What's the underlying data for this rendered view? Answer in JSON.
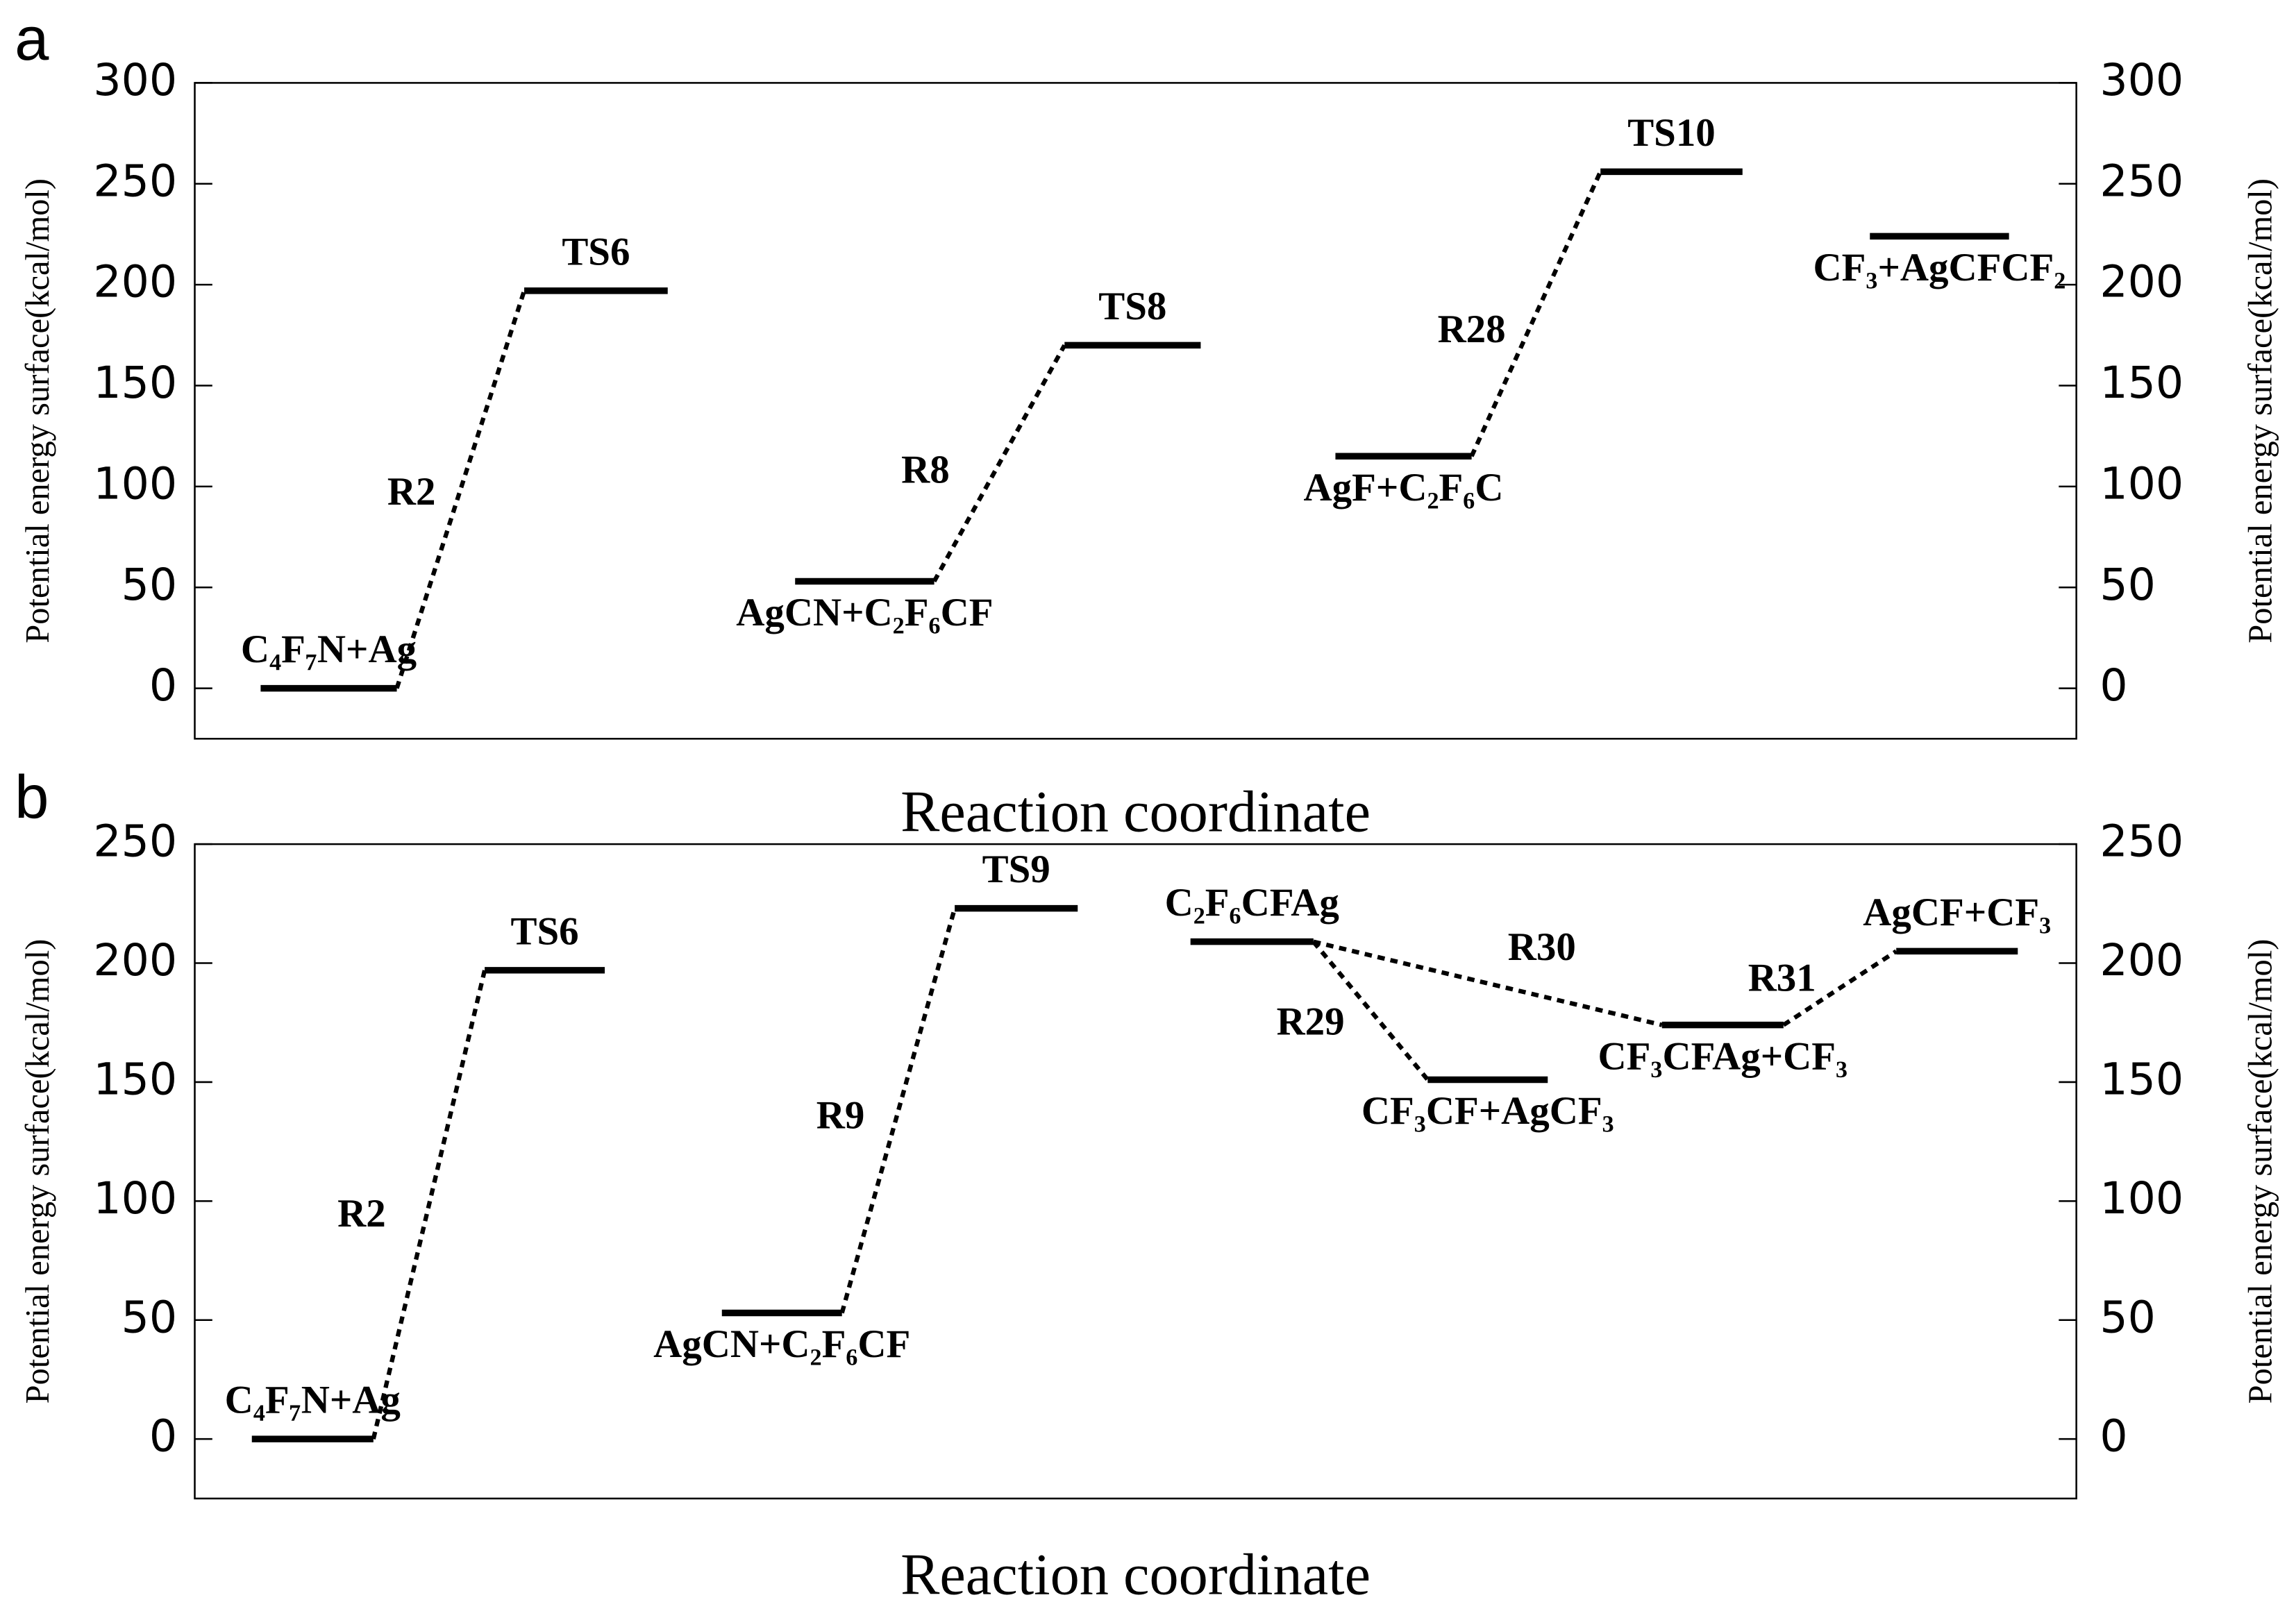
{
  "chart_data": [
    {
      "type": "energy",
      "panel": "a",
      "ylabel": "Potential energy surface(kcal/mol)",
      "y2label": "Potential energy surface(kcal/mol)",
      "xlabel": "Reaction coordinate",
      "ylim": [
        -25,
        300
      ],
      "yticks": [
        0,
        50,
        100,
        150,
        200,
        250,
        300
      ],
      "y2lim": [
        -25,
        300
      ],
      "y2ticks": [
        0,
        50,
        100,
        150,
        200,
        250,
        300
      ],
      "categories": [
        "C₄F₇N+Ag",
        "TS6",
        "AgCN+C₂F₆CF",
        "TS8",
        "AgF+C₂F₆C",
        "TS10",
        "CF₃+AgCFCF₂"
      ],
      "values": [
        0,
        197,
        53,
        170,
        115,
        256,
        224
      ],
      "reactions": [
        {
          "label": "R2",
          "from": 0,
          "to": 1
        },
        {
          "label": "R8",
          "from": 2,
          "to": 3
        },
        {
          "label": "R28",
          "from": 4,
          "to": 5
        }
      ]
    },
    {
      "type": "energy",
      "panel": "b",
      "ylabel": "Potential energy surface(kcal/mol)",
      "y2label": "Potential energy surface(kcal/mol)",
      "xlabel": "Reaction coordinate",
      "ylim": [
        -25,
        250
      ],
      "yticks": [
        0,
        50,
        100,
        150,
        200,
        250
      ],
      "y2lim": [
        -25,
        250
      ],
      "y2ticks": [
        0,
        50,
        100,
        150,
        200,
        250
      ],
      "categories": [
        "C₄F₇N+Ag",
        "TS6",
        "AgCN+C₂F₆CF",
        "TS9",
        "C₂F₆CFAg",
        "CF₃CF+AgCF₃",
        "CF₃CFAg+CF₃",
        "AgCF+CF₃"
      ],
      "values": [
        0,
        197,
        53,
        223,
        209,
        151,
        174,
        205
      ],
      "reactions": [
        {
          "label": "R2",
          "from": 0,
          "to": 1
        },
        {
          "label": "R9",
          "from": 2,
          "to": 3
        },
        {
          "label": "R29",
          "from": 4,
          "to": 5
        },
        {
          "label": "R30",
          "from": 4,
          "to": 6
        },
        {
          "label": "R31",
          "from": 6,
          "to": 7
        }
      ]
    }
  ]
}
